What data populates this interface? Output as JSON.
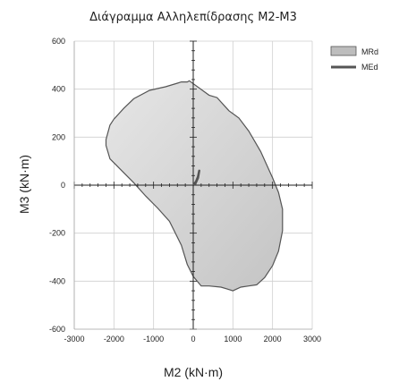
{
  "chart_data": {
    "type": "area",
    "title": "Διάγραμμα Αλληλεπίδρασης Μ2-Μ3",
    "xlabel": "M2 (kN·m)",
    "ylabel": "M3 (kN·m)",
    "xlim": [
      -3000,
      3000
    ],
    "ylim": [
      -600,
      600
    ],
    "x_ticks": [
      "-3000",
      "-2000",
      "-1000",
      "0",
      "1000",
      "2000",
      "3000"
    ],
    "y_ticks": [
      "600",
      "400",
      "200",
      "0",
      "-200",
      "-400",
      "-600"
    ],
    "grid": true,
    "legend_position": "top-right",
    "series": [
      {
        "name": "MRd",
        "kind": "filled-envelope",
        "color": "#d9d9d9",
        "edge_color": "#555555",
        "x": [
          -100,
          400,
          600,
          900,
          1150,
          1400,
          1700,
          2000,
          2150,
          2250,
          2250,
          2150,
          2000,
          1800,
          1600,
          1400,
          1200,
          1000,
          900,
          700,
          400,
          200,
          0,
          -150,
          -300,
          -600,
          -900,
          -1200,
          -1500,
          -1800,
          -2100,
          -2200,
          -2200,
          -2100,
          -2000,
          -1750,
          -1500,
          -1100,
          -700,
          -400,
          -300,
          -150
        ],
        "y": [
          435,
          375,
          365,
          310,
          280,
          225,
          140,
          30,
          -30,
          -100,
          -190,
          -275,
          -335,
          -385,
          -415,
          -420,
          -425,
          -440,
          -435,
          -425,
          -420,
          -420,
          -380,
          -330,
          -250,
          -150,
          -95,
          -45,
          10,
          60,
          110,
          165,
          190,
          250,
          275,
          320,
          360,
          395,
          410,
          425,
          430,
          430
        ]
      },
      {
        "name": "MEd",
        "kind": "line",
        "color": "#555555",
        "x": [
          0,
          50,
          120,
          150,
          120,
          70,
          20
        ],
        "y": [
          0,
          5,
          30,
          60,
          35,
          15,
          5
        ]
      }
    ]
  }
}
